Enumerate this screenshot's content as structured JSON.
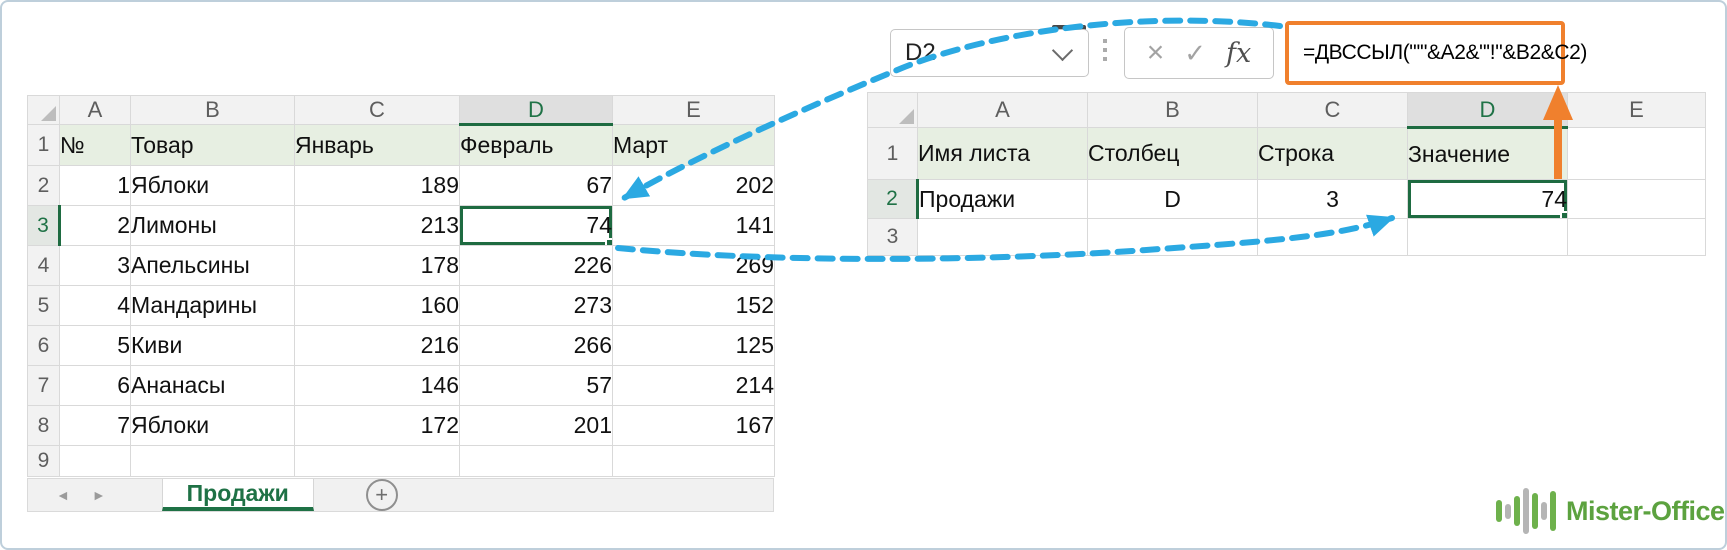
{
  "colors": {
    "excel_green": "#1F7246",
    "selection_green": "#1E6B41",
    "header_fill_green": "#E7EFE2",
    "header_underline_blue": "#A8C2DE",
    "arrow_blue": "#2BA9E2",
    "arrow_orange": "#F0802D",
    "logo_green": "#5CA23F",
    "logo_bar_gray": "#B5B5B5"
  },
  "left_sheet": {
    "column_headers": [
      "A",
      "B",
      "C",
      "D",
      "E"
    ],
    "row_headers": [
      "1",
      "2",
      "3",
      "4",
      "5",
      "6",
      "7",
      "8",
      "9"
    ],
    "selected_column": "D",
    "selected_row": "3",
    "table_headers": [
      "№",
      "Товар",
      "Январь",
      "Февраль",
      "Март"
    ],
    "rows": [
      [
        "1",
        "Яблоки",
        "189",
        "67",
        "202"
      ],
      [
        "2",
        "Лимоны",
        "213",
        "74",
        "141"
      ],
      [
        "3",
        "Апельсины",
        "178",
        "226",
        "269"
      ],
      [
        "4",
        "Мандарины",
        "160",
        "273",
        "152"
      ],
      [
        "5",
        "Киви",
        "216",
        "266",
        "125"
      ],
      [
        "6",
        "Ананасы",
        "146",
        "57",
        "214"
      ],
      [
        "7",
        "Яблоки",
        "172",
        "201",
        "167"
      ]
    ],
    "selected_cell": {
      "ref": "D3",
      "value": "74"
    },
    "tab_bar": {
      "prev_icon": "◄",
      "next_icon": "►",
      "active_tab": "Продажи",
      "add_sheet_icon": "+"
    }
  },
  "right_sheet": {
    "column_headers": [
      "A",
      "B",
      "C",
      "D",
      "E"
    ],
    "row_headers": [
      "1",
      "2",
      "3"
    ],
    "selected_column": "D",
    "selected_row": "2",
    "table_headers": [
      "Имя листа",
      "Столбец",
      "Строка",
      "Значение"
    ],
    "row_values": [
      "Продажи",
      "D",
      "3",
      "74"
    ],
    "selected_cell": {
      "ref": "D2",
      "value": "74"
    }
  },
  "formula_bar": {
    "name_box_value": "D2",
    "cancel_icon": "×",
    "enter_icon": "✓",
    "fx_icon": "fx",
    "formula": "=ДВССЫЛ(\"'\"&A2&\"'!\"&B2&C2)"
  },
  "branding": {
    "logo_text": "Mister-Office"
  }
}
